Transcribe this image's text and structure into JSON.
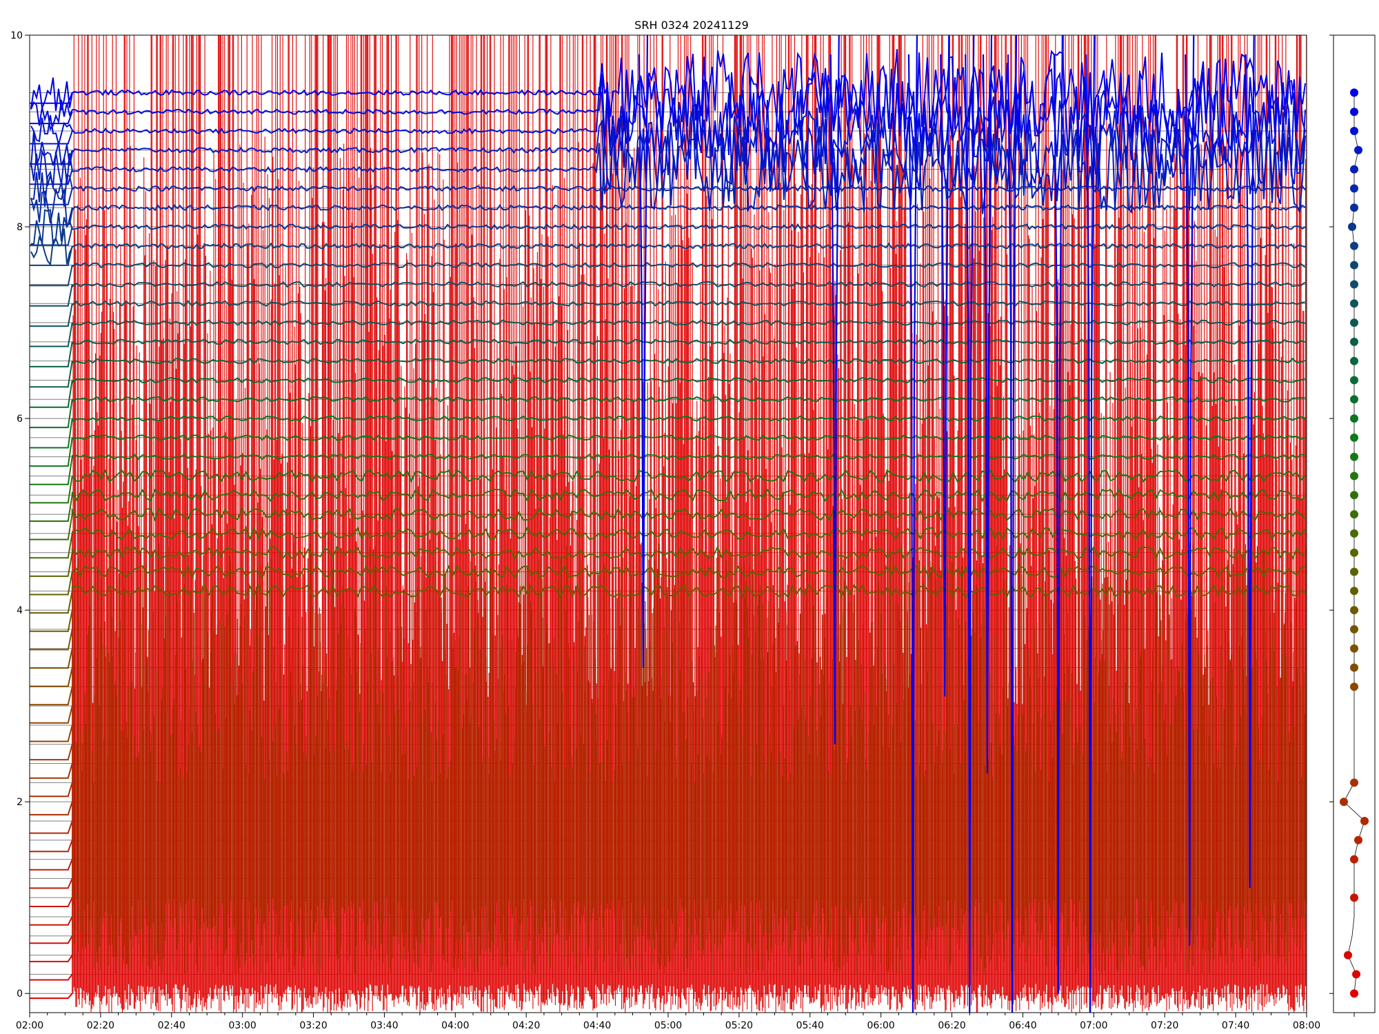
{
  "chart_data": [
    {
      "type": "line",
      "title": "SRH 0324 20241129",
      "xlabel": "",
      "ylabel": "",
      "x_range": [
        "02:00",
        "08:00"
      ],
      "ylim": [
        -0.2,
        10
      ],
      "x_tick_labels": [
        "02:00",
        "02:20",
        "02:40",
        "03:00",
        "03:20",
        "03:40",
        "04:00",
        "04:20",
        "04:40",
        "05:00",
        "05:20",
        "05:40",
        "06:00",
        "06:20",
        "06:40",
        "07:00",
        "07:20",
        "07:40",
        "08:00"
      ],
      "y_tick_labels": [
        "0",
        "2",
        "4",
        "6",
        "8",
        "10"
      ],
      "y_ticks": [
        0,
        2,
        4,
        6,
        8,
        10
      ],
      "grid": false,
      "legend": "none",
      "channel_count": 48,
      "channel_baseline_values": [
        0.0,
        0.2,
        0.4,
        0.6,
        0.8,
        1.0,
        1.2,
        1.4,
        1.6,
        1.8,
        2.0,
        2.2,
        2.4,
        2.6,
        2.8,
        3.0,
        3.2,
        3.4,
        3.6,
        3.8,
        4.0,
        4.2,
        4.4,
        4.6,
        4.8,
        5.0,
        5.2,
        5.4,
        5.6,
        5.8,
        6.0,
        6.2,
        6.4,
        6.6,
        6.8,
        7.0,
        7.2,
        7.4,
        7.6,
        7.8,
        8.0,
        8.2,
        8.4,
        8.6,
        8.8,
        9.0,
        9.2,
        9.4
      ],
      "color_scale": {
        "low": "#e00000",
        "mid_low": "#8a4a00",
        "mid": "#4f6a00",
        "mid_high": "#0b7a1a",
        "upper": "#0f4a6e",
        "high": "#0000ee"
      },
      "grey_reference_color": "#7f7f7f",
      "blue_dip_events": [
        {
          "time": "04:53",
          "min_value": 3.4
        },
        {
          "time": "05:47",
          "min_value": 2.6
        },
        {
          "time": "06:09",
          "min_value": -0.2
        },
        {
          "time": "06:18",
          "min_value": 3.1
        },
        {
          "time": "06:25",
          "min_value": -0.2
        },
        {
          "time": "06:30",
          "min_value": 2.3
        },
        {
          "time": "06:37",
          "min_value": -0.2
        },
        {
          "time": "06:50",
          "min_value": 0.0
        },
        {
          "time": "06:59",
          "min_value": -0.2
        },
        {
          "time": "07:27",
          "min_value": 0.5
        },
        {
          "time": "07:44",
          "min_value": 1.1
        }
      ]
    },
    {
      "type": "scatter",
      "title": "",
      "ylim": [
        -0.2,
        10
      ],
      "channel_offsets": [
        0.0,
        0.1,
        -0.3,
        -0.1,
        0.0,
        0.0,
        0.0,
        0.0,
        0.2,
        0.5,
        -0.5,
        0.0,
        0.0,
        0.0,
        0.0,
        0.0,
        0.0,
        0.0,
        0.0,
        0.0,
        0.0,
        0.0,
        0.0,
        0.0,
        0.0,
        0.0,
        0.0,
        0.0,
        0.0,
        0.0,
        0.0,
        0.0,
        0.0,
        0.0,
        0.0,
        0.0,
        0.0,
        0.0,
        0.0,
        0.0,
        -0.1,
        0.0,
        0.0,
        0.0,
        0.2,
        0.0,
        0.0,
        0.0
      ],
      "points_visible": [
        true,
        true,
        true,
        false,
        false,
        true,
        false,
        true,
        true,
        true,
        true,
        true,
        false,
        false,
        false,
        false,
        true,
        true,
        true,
        true,
        true,
        true,
        true,
        true,
        true,
        true,
        true,
        true,
        true,
        true,
        true,
        true,
        true,
        true,
        true,
        true,
        true,
        true,
        true,
        true,
        true,
        true,
        true,
        true,
        true,
        true,
        true,
        true
      ]
    }
  ]
}
